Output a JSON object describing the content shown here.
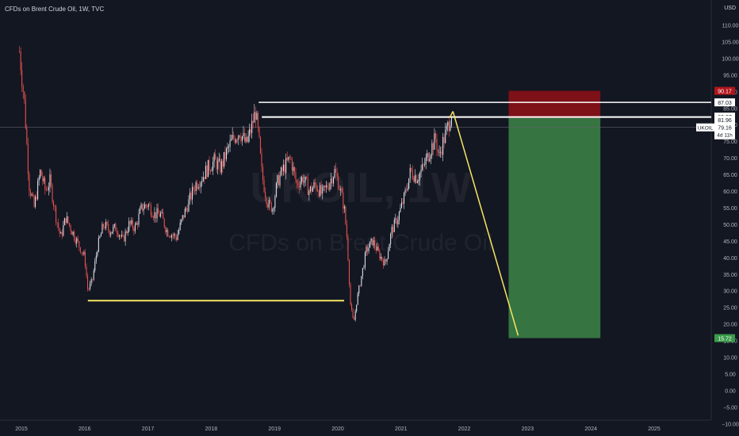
{
  "header": {
    "title": "CFDs on Brent Crude Oil, 1W, TVC",
    "currency": "USD"
  },
  "watermark": {
    "symbol": "UKOIL, 1W",
    "description": "CFDs on Brent Crude Oil"
  },
  "colors": {
    "background": "#131722",
    "up": "#e0e3eb",
    "down": "#ef5350",
    "axis_text": "#b2b5be",
    "support_line": "#f5e663",
    "resistance_line": "#ffffff",
    "stop_zone": "#8b0f16",
    "target_zone": "#3a7d44"
  },
  "chart_data": {
    "type": "candlestick",
    "symbol": "UKOIL",
    "interval": "1W",
    "x_axis": {
      "ticks": [
        "2015",
        "2016",
        "2017",
        "2018",
        "2019",
        "2020",
        "2021",
        "2022",
        "2023",
        "2024",
        "2025"
      ],
      "range": [
        2014.95,
        2026.0
      ]
    },
    "y_axis": {
      "range": [
        -12.5,
        115
      ],
      "ticks": [
        "110.00",
        "105.00",
        "100.00",
        "95.00",
        "90.00",
        "85.00",
        "80.00",
        "75.00",
        "70.00",
        "65.00",
        "60.00",
        "55.00",
        "50.00",
        "45.00",
        "40.00",
        "35.00",
        "30.00",
        "25.00",
        "20.00",
        "15.00",
        "10.00",
        "5.00",
        "0.00",
        "−5.00",
        "−10.00"
      ],
      "tick_values": [
        110,
        105,
        100,
        95,
        90,
        85,
        80,
        75,
        70,
        65,
        60,
        55,
        50,
        45,
        40,
        35,
        30,
        25,
        20,
        15,
        10,
        5,
        0,
        -5,
        -10
      ]
    },
    "price_path": {
      "t": [
        2014.97,
        2015.05,
        2015.12,
        2015.2,
        2015.3,
        2015.38,
        2015.45,
        2015.55,
        2015.62,
        2015.7,
        2015.8,
        2015.9,
        2016.0,
        2016.05,
        2016.12,
        2016.2,
        2016.3,
        2016.4,
        2016.5,
        2016.6,
        2016.7,
        2016.8,
        2016.9,
        2017.0,
        2017.1,
        2017.2,
        2017.3,
        2017.45,
        2017.55,
        2017.65,
        2017.75,
        2017.85,
        2017.95,
        2018.05,
        2018.15,
        2018.25,
        2018.35,
        2018.45,
        2018.55,
        2018.62,
        2018.7,
        2018.75,
        2018.8,
        2018.85,
        2018.9,
        2018.97,
        2019.05,
        2019.15,
        2019.25,
        2019.35,
        2019.45,
        2019.55,
        2019.65,
        2019.75,
        2019.85,
        2019.95,
        2020.02,
        2020.1,
        2020.15,
        2020.2,
        2020.25,
        2020.3,
        2020.35,
        2020.45,
        2020.55,
        2020.65,
        2020.75,
        2020.85,
        2020.95,
        2021.05,
        2021.15,
        2021.25,
        2021.35,
        2021.45,
        2021.55,
        2021.6,
        2021.65,
        2021.72,
        2021.8
      ],
      "close": [
        102,
        86,
        62,
        55,
        66,
        60,
        63,
        52,
        46,
        52,
        48,
        44,
        40,
        30,
        33,
        43,
        50,
        48,
        49,
        45,
        50,
        49,
        55,
        56,
        53,
        53,
        48,
        46,
        52,
        57,
        62,
        64,
        67,
        69,
        67,
        72,
        76,
        78,
        74,
        78,
        84,
        76,
        65,
        60,
        56,
        55,
        63,
        67,
        70,
        62,
        64,
        60,
        62,
        59,
        62,
        66,
        62,
        55,
        45,
        26,
        20,
        27,
        32,
        42,
        45,
        41,
        38,
        48,
        52,
        58,
        66,
        64,
        67,
        72,
        76,
        70,
        74,
        78,
        84
      ]
    },
    "annotations": {
      "support_line": {
        "y": 27.0,
        "x_start": 2016.05,
        "x_end": 2020.1,
        "label": ""
      },
      "resistance_line_top": {
        "y": 86.7,
        "x_start": 2018.75,
        "x_end": 2026.0,
        "label": "87.03"
      },
      "resistance_line_bottom": {
        "y": 82.3,
        "x_start": 2018.8,
        "x_end": 2026.0,
        "label": "82.37"
      },
      "projection": {
        "points": [
          [
            2021.82,
            84.0
          ],
          [
            2022.85,
            16.5
          ]
        ]
      },
      "position": {
        "x_start": 2022.7,
        "x_end": 2024.15,
        "stop": 90.17,
        "entry": 81.96,
        "target": 15.72
      },
      "last_price": {
        "value": 79.16,
        "label": "UKOIL",
        "countdown": "4d 11h"
      }
    },
    "price_labels": {
      "stop": "90.17",
      "resistance_top": "87.03",
      "resistance_bottom": "82.37",
      "entry": "81.96",
      "last_symbol": "UKOIL",
      "last_value": "79.16",
      "countdown": "4d 11h",
      "target": "15.72"
    }
  }
}
